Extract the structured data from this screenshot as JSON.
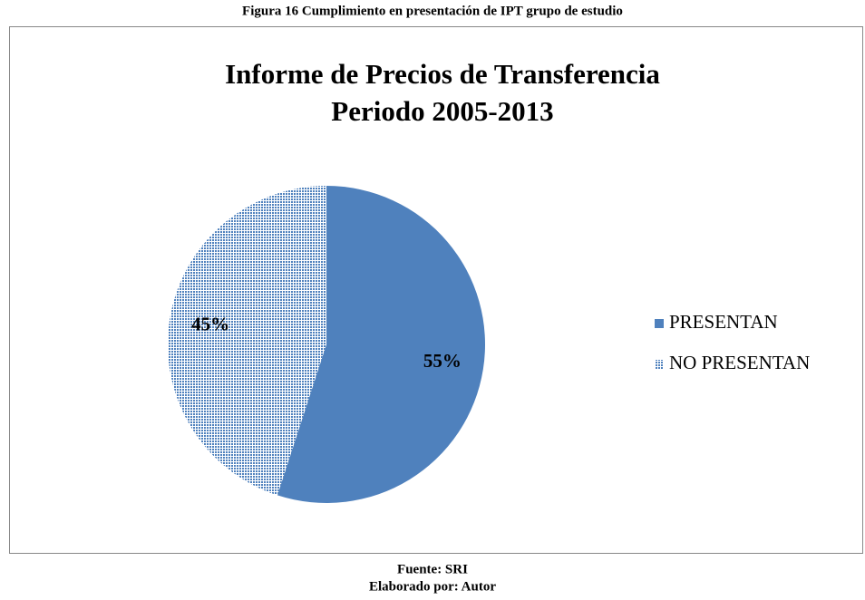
{
  "caption": "Figura 16 Cumplimiento en presentación de IPT grupo de estudio",
  "chart_data": {
    "type": "pie",
    "title": [
      "Informe de Precios de Transferencia",
      "Periodo 2005-2013"
    ],
    "categories": [
      "PRESENTAN",
      "NO PRESENTAN"
    ],
    "values": [
      55,
      45
    ],
    "value_labels": [
      "55%",
      "45%"
    ],
    "colors": [
      "#4f81bd",
      "#4f81bd"
    ],
    "patterns": [
      "solid",
      "dots"
    ],
    "legend": "right"
  },
  "source": "Fuente: SRI",
  "credit": "Elaborado por: Autor"
}
